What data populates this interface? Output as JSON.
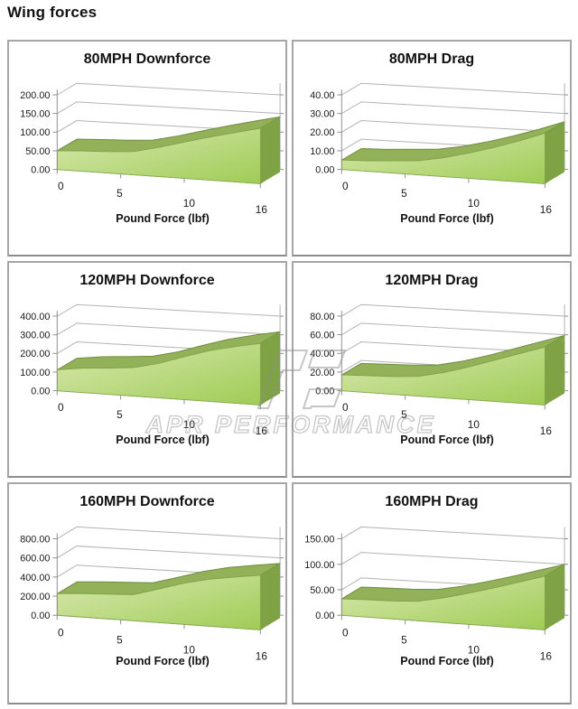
{
  "page": {
    "title": "Wing forces"
  },
  "watermark": {
    "text": "APR PERFORMANCE"
  },
  "style": {
    "grid": "#b2b2b2",
    "axis": "#8f8f8f",
    "area_light": "#d9e8b0",
    "area_dark": "#9fcc55",
    "ridge": "#93b158",
    "ridge_edge": "#6e8c3e",
    "side": "#7fa244",
    "front_edge": "#85a84b",
    "watermark_stroke": "#8f8f8f"
  },
  "chart_data": [
    {
      "type": "area",
      "title": "80MPH Downforce",
      "xlabel": "Pound Force (lbf)",
      "x": [
        0,
        2,
        4,
        6,
        8,
        10,
        12,
        14,
        16
      ],
      "values": [
        50,
        54,
        57,
        62,
        78,
        97,
        115,
        132,
        148
      ],
      "ylim": [
        0,
        200
      ],
      "y_ticks": [
        "0.00",
        "50.00",
        "100.00",
        "150.00",
        "200.00"
      ],
      "x_ticks": [
        "0",
        "5",
        "10",
        "16"
      ],
      "grid": true,
      "legend": "none",
      "projection": "3d-area"
    },
    {
      "type": "area",
      "title": "80MPH Drag",
      "xlabel": "Pound Force (lbf)",
      "x": [
        0,
        2,
        4,
        6,
        8,
        10,
        12,
        14,
        16
      ],
      "values": [
        5,
        5.5,
        6.5,
        7.5,
        10,
        13.5,
        17.5,
        22,
        27
      ],
      "ylim": [
        0,
        40
      ],
      "y_ticks": [
        "0.00",
        "10.00",
        "20.00",
        "30.00",
        "40.00"
      ],
      "x_ticks": [
        "0",
        "5",
        "10",
        "16"
      ],
      "grid": true,
      "legend": "none",
      "projection": "3d-area"
    },
    {
      "type": "area",
      "title": "120MPH Downforce",
      "xlabel": "Pound Force (lbf)",
      "x": [
        0,
        2,
        4,
        6,
        8,
        10,
        12,
        14,
        16
      ],
      "values": [
        112,
        130,
        140,
        152,
        185,
        230,
        272,
        303,
        330
      ],
      "ylim": [
        0,
        400
      ],
      "y_ticks": [
        "0.00",
        "100.00",
        "200.00",
        "300.00",
        "400.00"
      ],
      "x_ticks": [
        "0",
        "5",
        "10",
        "16"
      ],
      "grid": true,
      "legend": "none",
      "projection": "3d-area"
    },
    {
      "type": "area",
      "title": "120MPH Drag",
      "xlabel": "Pound Force (lbf)",
      "x": [
        0,
        2,
        4,
        6,
        8,
        10,
        12,
        14,
        16
      ],
      "values": [
        17,
        18,
        19,
        21,
        27,
        35,
        44,
        53,
        62
      ],
      "ylim": [
        0,
        80
      ],
      "y_ticks": [
        "0.00",
        "20.00",
        "40.00",
        "60.00",
        "80.00"
      ],
      "x_ticks": [
        "0",
        "5",
        "10",
        "16"
      ],
      "grid": true,
      "legend": "none",
      "projection": "3d-area"
    },
    {
      "type": "area",
      "title": "160MPH Downforce",
      "xlabel": "Pound Force (lbf)",
      "x": [
        0,
        2,
        4,
        6,
        8,
        10,
        12,
        14,
        16
      ],
      "values": [
        225,
        245,
        258,
        272,
        350,
        430,
        490,
        532,
        570
      ],
      "ylim": [
        0,
        800
      ],
      "y_ticks": [
        "0.00",
        "200.00",
        "400.00",
        "600.00",
        "800.00"
      ],
      "x_ticks": [
        "0",
        "5",
        "10",
        "16"
      ],
      "grid": true,
      "legend": "none",
      "projection": "3d-area"
    },
    {
      "type": "area",
      "title": "160MPH Drag",
      "xlabel": "Pound Force (lbf)",
      "x": [
        0,
        2,
        4,
        6,
        8,
        10,
        12,
        14,
        16
      ],
      "values": [
        32,
        34,
        35,
        38,
        48,
        61,
        75,
        90,
        105
      ],
      "ylim": [
        0,
        150
      ],
      "y_ticks": [
        "0.00",
        "50.00",
        "100.00",
        "150.00"
      ],
      "x_ticks": [
        "0",
        "5",
        "10",
        "16"
      ],
      "grid": true,
      "legend": "none",
      "projection": "3d-area"
    }
  ]
}
